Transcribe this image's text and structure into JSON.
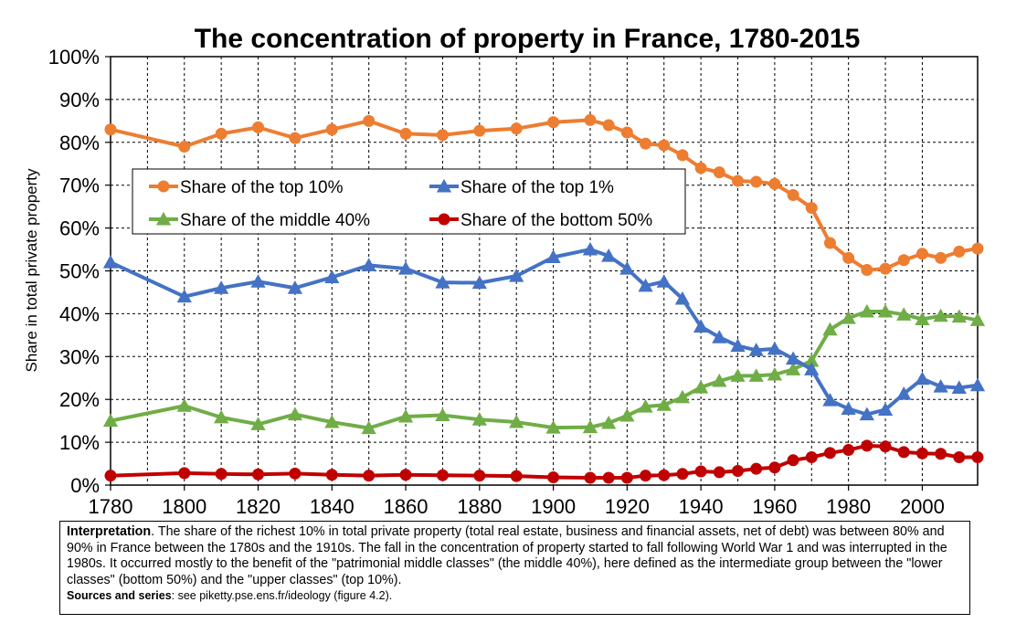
{
  "chart_data": {
    "type": "line",
    "title": "The concentration of property in France, 1780-2015",
    "ylabel": "Share in total private property",
    "xlabel": "",
    "xlim": [
      1780,
      2015
    ],
    "ylim": [
      0,
      100
    ],
    "x_ticks": [
      "1780",
      "1800",
      "1820",
      "1840",
      "1860",
      "1880",
      "1900",
      "1920",
      "1940",
      "1960",
      "1980",
      "2000"
    ],
    "y_ticks": [
      "0%",
      "10%",
      "20%",
      "30%",
      "40%",
      "50%",
      "60%",
      "70%",
      "80%",
      "90%",
      "100%"
    ],
    "grid": true,
    "legend_position": "center-left",
    "series": [
      {
        "name": "Share of the top 10%",
        "color": "#ED7D31",
        "marker": "circle",
        "x": [
          1780,
          1800,
          1810,
          1820,
          1830,
          1840,
          1850,
          1860,
          1870,
          1880,
          1890,
          1900,
          1910,
          1915,
          1920,
          1925,
          1930,
          1935,
          1940,
          1945,
          1950,
          1955,
          1960,
          1965,
          1970,
          1975,
          1980,
          1985,
          1990,
          1995,
          2000,
          2005,
          2010,
          2015
        ],
        "values": [
          83,
          79,
          82,
          83.5,
          81,
          83,
          85,
          82,
          81.7,
          82.7,
          83.2,
          84.7,
          85.2,
          84,
          82.3,
          79.7,
          79.3,
          77,
          74,
          73,
          71,
          70.8,
          70.3,
          67.7,
          64.7,
          56.5,
          53,
          50.2,
          50.5,
          52.5,
          54,
          53,
          54.5,
          55.2
        ]
      },
      {
        "name": "Share of the top 1%",
        "color": "#4472C4",
        "marker": "triangle",
        "x": [
          1780,
          1800,
          1810,
          1820,
          1830,
          1840,
          1850,
          1860,
          1870,
          1880,
          1890,
          1900,
          1910,
          1915,
          1920,
          1925,
          1930,
          1935,
          1940,
          1945,
          1950,
          1955,
          1960,
          1965,
          1970,
          1975,
          1980,
          1985,
          1990,
          1995,
          2000,
          2005,
          2010,
          2015
        ],
        "values": [
          52,
          44,
          46,
          47.5,
          46,
          48.5,
          51.3,
          50.5,
          47.3,
          47.2,
          48.8,
          53.2,
          55,
          53.5,
          50.5,
          46.5,
          47.5,
          43.5,
          37,
          34.5,
          32.5,
          31.5,
          31.8,
          29.5,
          27,
          19.8,
          17.8,
          16.5,
          17.6,
          21.3,
          24.8,
          23,
          22.7,
          23.3
        ]
      },
      {
        "name": "Share of the middle 40%",
        "color": "#70AD47",
        "marker": "triangle",
        "x": [
          1780,
          1800,
          1810,
          1820,
          1830,
          1840,
          1850,
          1860,
          1870,
          1880,
          1890,
          1900,
          1910,
          1915,
          1920,
          1925,
          1930,
          1935,
          1940,
          1945,
          1950,
          1955,
          1960,
          1965,
          1970,
          1975,
          1980,
          1985,
          1990,
          1995,
          2000,
          2005,
          2010,
          2015
        ],
        "values": [
          15,
          18.5,
          15.8,
          14.2,
          16.5,
          14.7,
          13.3,
          16,
          16.3,
          15.3,
          14.7,
          13.4,
          13.5,
          14.5,
          16.2,
          18.3,
          18.7,
          20.5,
          22.8,
          24.3,
          25.5,
          25.5,
          25.8,
          27,
          29,
          36.3,
          39,
          40.5,
          40.5,
          39.8,
          38.7,
          39.5,
          39.3,
          38.5
        ]
      },
      {
        "name": "Share of the bottom 50%",
        "color": "#C00000",
        "marker": "circle",
        "x": [
          1780,
          1800,
          1810,
          1820,
          1830,
          1840,
          1850,
          1860,
          1870,
          1880,
          1890,
          1900,
          1910,
          1915,
          1920,
          1925,
          1930,
          1935,
          1940,
          1945,
          1950,
          1955,
          1960,
          1965,
          1970,
          1975,
          1980,
          1985,
          1990,
          1995,
          2000,
          2005,
          2010,
          2015
        ],
        "values": [
          2.2,
          2.8,
          2.6,
          2.5,
          2.7,
          2.4,
          2.2,
          2.4,
          2.3,
          2.2,
          2.1,
          1.8,
          1.7,
          1.7,
          1.7,
          2.2,
          2.3,
          2.6,
          3.2,
          3,
          3.3,
          3.8,
          4.1,
          5.8,
          6.5,
          7.5,
          8.2,
          9.2,
          9,
          7.7,
          7.4,
          7.3,
          6.5,
          6.5
        ]
      }
    ]
  },
  "note": {
    "interpretation_label": "Interpretation",
    "interpretation_text": ". The share of the richest 10% in total private property (total real estate, business and financial assets, net of debt) was between 80% and 90% in France between the 1780s and the 1910s. The fall in the concentration of property started to fall following World War 1 and was interrupted in the 1980s. It occurred mostly to the benefit of the \"patrimonial middle classes\" (the middle 40%), here defined as the intermediate group between the \"lower classes\" (bottom 50%) and the \"upper classes\" (top 10%).",
    "sources_label": "Sources and series",
    "sources_text": ": see piketty.pse.ens.fr/ideology (figure 4.2)."
  }
}
